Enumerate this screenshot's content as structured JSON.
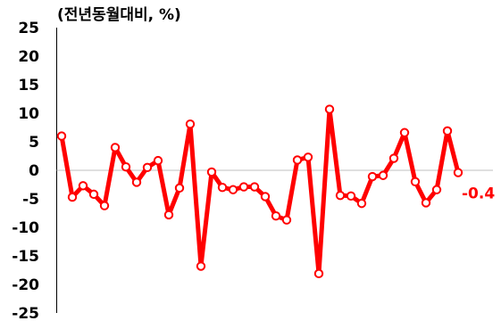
{
  "chart_data": {
    "type": "line",
    "unit_label": "(전년동월대비, %)",
    "ylim": [
      -25,
      25
    ],
    "yticks": [
      25,
      20,
      15,
      10,
      5,
      0,
      -5,
      -10,
      -15,
      -20,
      -25
    ],
    "grid": false,
    "zero_line": true,
    "series": [
      {
        "color": "#ff0000",
        "values": [
          6.0,
          -4.7,
          -2.7,
          -4.2,
          -6.2,
          4.0,
          0.6,
          -2.1,
          0.5,
          1.7,
          -7.8,
          -3.1,
          8.1,
          -16.8,
          -0.3,
          -3.0,
          -3.4,
          -2.9,
          -2.9,
          -4.6,
          -8.0,
          -8.7,
          1.8,
          2.3,
          -18.1,
          10.7,
          -4.4,
          -4.5,
          -5.8,
          -1.1,
          -0.9,
          2.1,
          6.6,
          -2.0,
          -5.7,
          -3.4,
          6.9,
          -0.4
        ]
      }
    ],
    "last_value_label": "-0.4"
  }
}
